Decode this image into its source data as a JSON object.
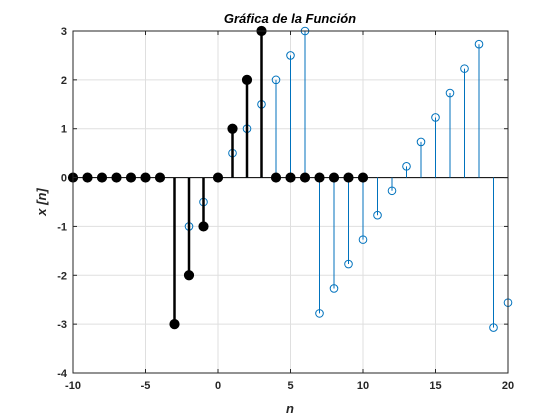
{
  "chart_data": {
    "type": "stem",
    "title": "Gráfica de la Función",
    "xlabel": "n",
    "ylabel": "x  [n]",
    "xlim": [
      -10,
      20
    ],
    "ylim": [
      -4,
      3
    ],
    "xticks": [
      -10,
      -5,
      0,
      5,
      10,
      15,
      20
    ],
    "yticks": [
      -4,
      -3,
      -2,
      -1,
      0,
      1,
      2,
      3
    ],
    "grid": true,
    "legend": "none",
    "series": [
      {
        "style": "filled-black",
        "color": "#000000",
        "x": [
          -10,
          -9,
          -8,
          -7,
          -6,
          -5,
          -4,
          -3,
          -2,
          -1,
          0,
          1,
          2,
          3,
          4,
          5,
          6,
          7,
          8,
          9,
          10
        ],
        "y": [
          0,
          0,
          0,
          0,
          0,
          0,
          0,
          -3,
          -2,
          -1,
          0,
          1,
          2,
          3,
          0,
          0,
          0,
          0,
          0,
          0,
          0
        ]
      },
      {
        "style": "open-blue",
        "color": "#0072BD",
        "x": [
          -2,
          -1,
          1,
          2,
          3,
          4,
          5,
          6,
          7,
          8,
          9,
          10,
          11,
          12,
          13,
          14,
          15,
          16,
          17,
          18,
          19,
          20
        ],
        "y": [
          -1,
          -0.5,
          0.5,
          1,
          1.5,
          2,
          2.5,
          3,
          -2.78,
          -2.27,
          -1.77,
          -1.27,
          -0.77,
          -0.27,
          0.23,
          0.73,
          1.23,
          1.73,
          2.23,
          2.73,
          -3.07,
          -2.56
        ]
      }
    ]
  }
}
